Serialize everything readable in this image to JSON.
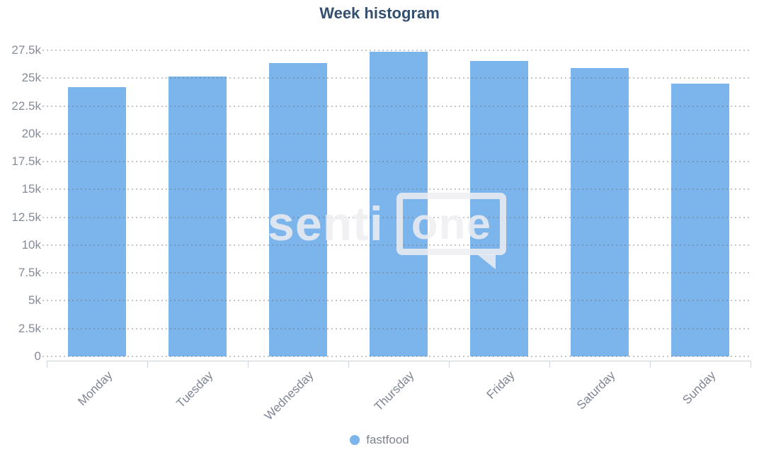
{
  "title": "Week histogram",
  "chart_data": {
    "type": "bar",
    "title": "Week histogram",
    "categories": [
      "Monday",
      "Tuesday",
      "Wednesday",
      "Thursday",
      "Friday",
      "Saturday",
      "Sunday"
    ],
    "series": [
      {
        "name": "fastfood",
        "color": "#7cb5ec",
        "values": [
          24250,
          25200,
          26400,
          27450,
          26600,
          26000,
          24550
        ]
      }
    ],
    "xlabel": "",
    "ylabel": "",
    "ylim": [
      0,
      27500
    ],
    "yticks": [
      {
        "value": 0,
        "label": "0"
      },
      {
        "value": 2500,
        "label": "2.5k"
      },
      {
        "value": 5000,
        "label": "5k"
      },
      {
        "value": 7500,
        "label": "7.5k"
      },
      {
        "value": 10000,
        "label": "10k"
      },
      {
        "value": 12500,
        "label": "12.5k"
      },
      {
        "value": 15000,
        "label": "15k"
      },
      {
        "value": 17500,
        "label": "17.5k"
      },
      {
        "value": 20000,
        "label": "20k"
      },
      {
        "value": 22500,
        "label": "22.5k"
      },
      {
        "value": 25000,
        "label": "25k"
      },
      {
        "value": 27500,
        "label": "27.5k"
      }
    ],
    "grid": "horizontal-dotted",
    "legend_position": "bottom-center"
  },
  "legend": {
    "items": [
      {
        "label": "fastfood",
        "color": "#7cb5ec"
      }
    ]
  },
  "watermark": {
    "text_left": "senti",
    "text_boxed": "one"
  },
  "colors": {
    "bar": "#7cb5ec",
    "title": "#34506e",
    "axis_label": "#858b99",
    "axis_line": "#cdd3da",
    "grid_dot": "#6e6e6e"
  }
}
